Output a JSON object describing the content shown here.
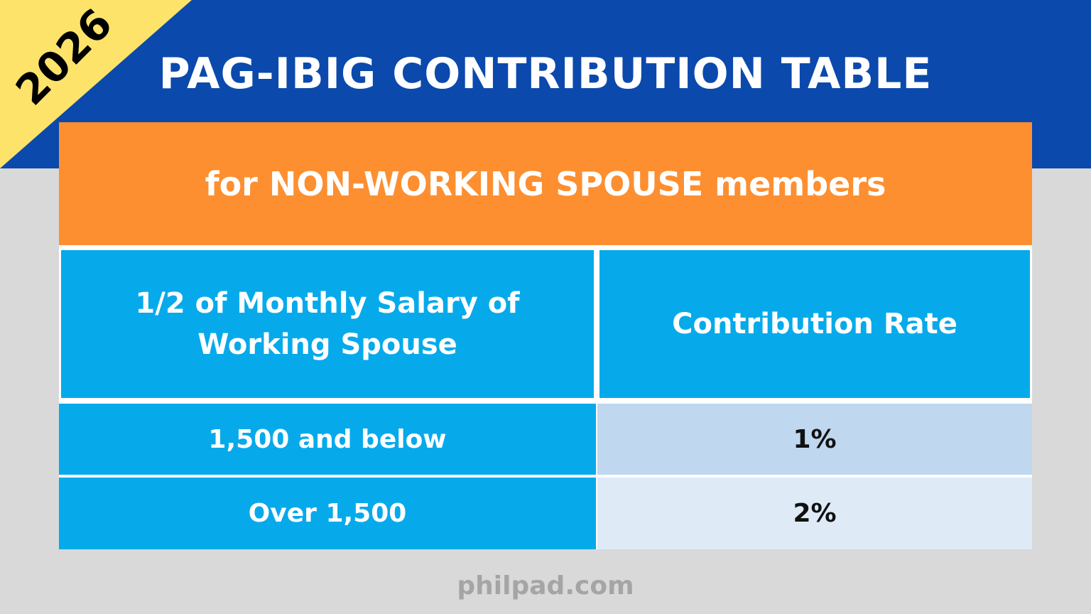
{
  "year": "2026",
  "title": "PAG-IBIG CONTRIBUTION TABLE",
  "subtitle": "for NON-WORKING SPOUSE members",
  "table": {
    "headers": [
      "1/2 of Monthly Salary of Working Spouse",
      "Contribution Rate"
    ],
    "rows": [
      {
        "salary": "1,500 and below",
        "rate": "1%"
      },
      {
        "salary": "Over 1,500",
        "rate": "2%"
      }
    ]
  },
  "footer": "philpad.com",
  "colors": {
    "band": "#0b49ad",
    "year_corner": "#fde36a",
    "subtitle_bar": "#fd8f30",
    "header_cells": "#06aaeb",
    "row1_rate_cell": "#bfd7ef",
    "row2_rate_cell": "#deebf7",
    "background": "#d9d9d9"
  }
}
